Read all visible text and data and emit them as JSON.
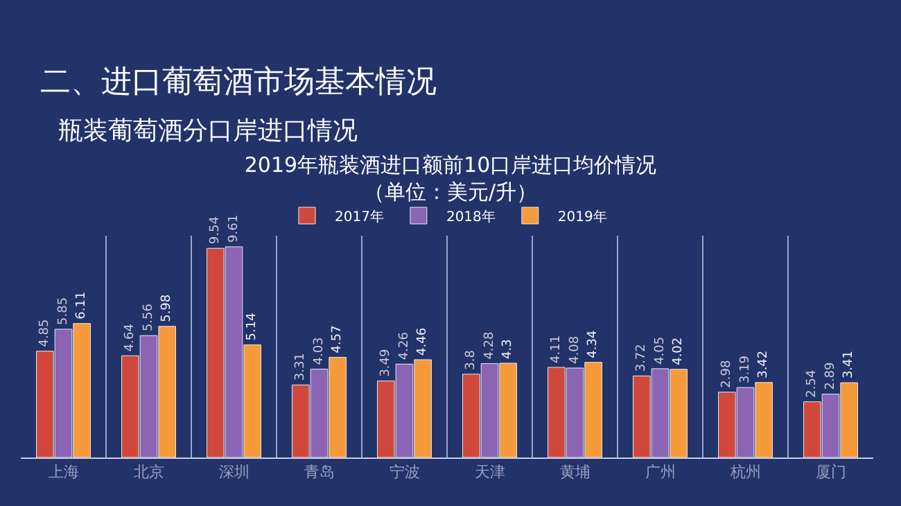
{
  "chart_data": {
    "type": "bar",
    "title": "2019年瓶装酒进口额前10口岸进口均价情况",
    "subtitle": "（单位：美元/升）",
    "annotations": [
      "二、进口葡萄酒市场基本情况",
      "瓶装葡萄酒分口岸进口情况"
    ],
    "categories": [
      "上海",
      "北京",
      "深圳",
      "青岛",
      "宁波",
      "天津",
      "黄埔",
      "广州",
      "杭州",
      "厦门"
    ],
    "series": [
      {
        "name": "2017年",
        "color": "#d0483c",
        "values": [
          4.85,
          4.64,
          9.54,
          3.31,
          3.49,
          3.8,
          4.11,
          3.72,
          2.98,
          2.54
        ]
      },
      {
        "name": "2018年",
        "color": "#8c64b4",
        "values": [
          5.85,
          5.56,
          9.61,
          4.03,
          4.26,
          4.28,
          4.08,
          4.05,
          3.19,
          2.89
        ]
      },
      {
        "name": "2019年",
        "color": "#f79a3a",
        "values": [
          6.11,
          5.98,
          5.14,
          4.57,
          4.46,
          4.3,
          4.34,
          4.02,
          3.42,
          3.41
        ]
      }
    ],
    "data_labels": true,
    "grid": "x",
    "legend": "top"
  }
}
